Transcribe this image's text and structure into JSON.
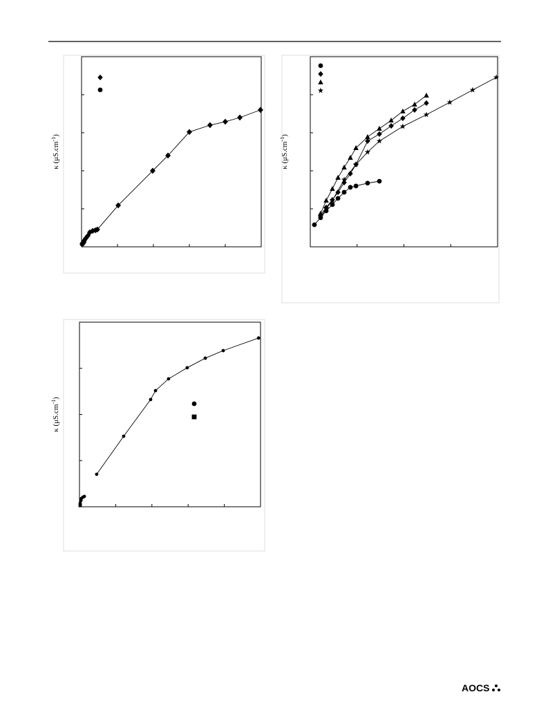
{
  "chart_data": [
    {
      "type": "scatter",
      "y_label": {
        "text": "κ (μS.cm",
        "sup": "-1",
        "close": ")"
      },
      "xlim": [
        0,
        100
      ],
      "ylim": [
        0,
        100
      ],
      "series": [
        {
          "marker": "diamond",
          "color": "#000",
          "line": true,
          "x": [
            0.8,
            1.5,
            2.3,
            3.5,
            4.6,
            6.2,
            7.7,
            8.8,
            20.4,
            39.6,
            48.1,
            60.0,
            71.5,
            80.0,
            88.1,
            99.6
          ],
          "values": [
            1.8,
            3.3,
            4.4,
            5.8,
            7.6,
            8.4,
            8.7,
            9.1,
            21.8,
            40.0,
            48.0,
            60.4,
            64.0,
            65.8,
            68.0,
            72.0
          ]
        },
        {
          "marker": "circle",
          "color": "#000",
          "line": false,
          "x": [
            0.4,
            1.2
          ],
          "values": [
            1.5,
            2.5
          ]
        }
      ]
    },
    {
      "type": "scatter",
      "y_label": {
        "text": "κ (μS.cm",
        "sup": "-1",
        "close": ")"
      },
      "xlim": [
        0,
        100
      ],
      "ylim": [
        0,
        100
      ],
      "series": [
        {
          "marker": "circle",
          "color": "#000",
          "line": true,
          "x": [
            2.2,
            5.5,
            8.5,
            11.8,
            14.8,
            18.1,
            21.4,
            24.4,
            30.6,
            36.9
          ],
          "values": [
            11.6,
            15.3,
            18.9,
            22.2,
            25.5,
            28.7,
            31.3,
            32.0,
            33.5,
            34.5
          ]
        },
        {
          "marker": "diamond",
          "color": "#000",
          "line": true,
          "x": [
            5.5,
            8.5,
            11.8,
            14.8,
            18.1,
            21.4,
            24.4,
            30.6,
            36.9,
            43.2,
            49.4,
            55.7,
            62.0
          ],
          "values": [
            16.7,
            20.7,
            24.7,
            28.7,
            33.8,
            38.5,
            43.3,
            55.6,
            59.3,
            63.6,
            67.6,
            72.0,
            75.6
          ]
        },
        {
          "marker": "triangle",
          "color": "#000",
          "line": true,
          "x": [
            5.5,
            8.5,
            11.8,
            14.8,
            18.1,
            21.4,
            24.4,
            30.6,
            36.9,
            43.2,
            49.4,
            55.7,
            62.0
          ],
          "values": [
            17.5,
            24.4,
            30.5,
            36.4,
            41.8,
            46.9,
            52.0,
            57.8,
            62.2,
            66.5,
            71.3,
            74.9,
            79.6
          ]
        },
        {
          "marker": "star",
          "color": "#000",
          "line": true,
          "x": [
            5.5,
            8.5,
            11.8,
            18.1,
            24.4,
            30.6,
            36.9,
            49.4,
            62.0,
            74.5,
            86.7,
            99.3
          ],
          "values": [
            15.6,
            20.0,
            24.4,
            35.3,
            43.3,
            49.8,
            55.6,
            63.3,
            69.5,
            76.0,
            82.5,
            89.1
          ]
        }
      ]
    },
    {
      "type": "scatter",
      "y_label": {
        "text": "κ (μS.cm",
        "sup": "-1",
        "close": ")"
      },
      "xlim": [
        0,
        100
      ],
      "ylim": [
        0,
        100
      ],
      "series": [
        {
          "marker": "circle",
          "color": "#000",
          "line": true,
          "x": [
            9.5,
            24.4,
            39.3,
            42.0,
            49.2,
            59.5,
            69.5,
            79.4,
            98.9
          ],
          "values": [
            17.6,
            38.2,
            58.1,
            62.9,
            69.3,
            75.3,
            80.5,
            84.6,
            91.4
          ]
        },
        {
          "marker": "circle",
          "color": "#000",
          "line": false,
          "x": [
            0.4,
            0.8,
            1.1,
            1.9,
            2.7
          ],
          "values": [
            1.9,
            3.4,
            4.5,
            5.2,
            5.6
          ]
        },
        {
          "marker": "square",
          "color": "#000",
          "line": false,
          "x": [
            0.4
          ],
          "values": [
            0.7
          ]
        }
      ]
    }
  ],
  "footer": {
    "logo": "AOCS"
  }
}
